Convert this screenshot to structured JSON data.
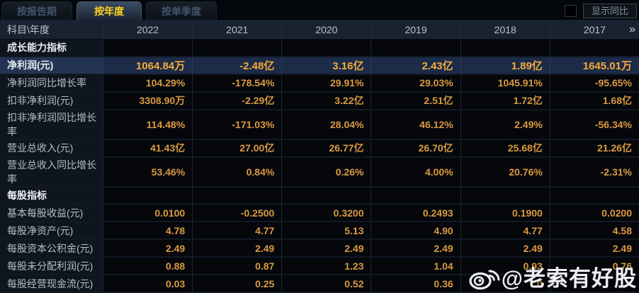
{
  "tabs": [
    {
      "label": "按报告期",
      "active": false
    },
    {
      "label": "按年度",
      "active": true
    },
    {
      "label": "按单季度",
      "active": false
    }
  ],
  "toolbar": {
    "show_yoy_label": "显示同比"
  },
  "table": {
    "corner_header": "科目\\年度",
    "year_headers": [
      "2022",
      "2021",
      "2020",
      "2019",
      "2018",
      "2017"
    ],
    "more_years_icon": "»",
    "rows": [
      {
        "type": "section",
        "label": "成长能力指标",
        "values": [
          "",
          "",
          "",
          "",
          "",
          ""
        ]
      },
      {
        "type": "data",
        "highlight": true,
        "label": "净利润(元)",
        "values": [
          "1064.84万",
          "-2.48亿",
          "3.16亿",
          "2.43亿",
          "1.89亿",
          "1645.01万"
        ]
      },
      {
        "type": "data",
        "highlight": false,
        "label": "净利润同比增长率",
        "values": [
          "104.29%",
          "-178.54%",
          "29.91%",
          "29.03%",
          "1045.91%",
          "-95.65%"
        ]
      },
      {
        "type": "data",
        "highlight": false,
        "label": "扣非净利润(元)",
        "values": [
          "3308.90万",
          "-2.29亿",
          "3.22亿",
          "2.51亿",
          "1.72亿",
          "1.68亿"
        ]
      },
      {
        "type": "data",
        "highlight": false,
        "label": "扣非净利润同比增长率",
        "values": [
          "114.48%",
          "-171.03%",
          "28.04%",
          "46.12%",
          "2.49%",
          "-56.34%"
        ]
      },
      {
        "type": "data",
        "highlight": false,
        "label": "营业总收入(元)",
        "values": [
          "41.43亿",
          "27.00亿",
          "26.77亿",
          "26.70亿",
          "25.68亿",
          "21.26亿"
        ]
      },
      {
        "type": "data",
        "highlight": false,
        "label": "营业总收入同比增长率",
        "values": [
          "53.46%",
          "0.84%",
          "0.26%",
          "4.00%",
          "20.76%",
          "-2.31%"
        ]
      },
      {
        "type": "section",
        "label": "每股指标",
        "values": [
          "",
          "",
          "",
          "",
          "",
          ""
        ]
      },
      {
        "type": "data",
        "highlight": false,
        "label": "基本每股收益(元)",
        "values": [
          "0.0100",
          "-0.2500",
          "0.3200",
          "0.2493",
          "0.1900",
          "0.0200"
        ]
      },
      {
        "type": "data",
        "highlight": false,
        "label": "每股净资产(元)",
        "values": [
          "4.78",
          "4.77",
          "5.13",
          "4.90",
          "4.77",
          "4.58"
        ]
      },
      {
        "type": "data",
        "highlight": false,
        "label": "每股资本公积金(元)",
        "values": [
          "2.49",
          "2.49",
          "2.49",
          "2.49",
          "2.49",
          "2.49"
        ]
      },
      {
        "type": "data",
        "highlight": false,
        "label": "每股未分配利润(元)",
        "values": [
          "0.88",
          "0.87",
          "1.23",
          "1.04",
          "0.93",
          "0.76"
        ]
      },
      {
        "type": "data",
        "highlight": false,
        "label": "每股经营现金流(元)",
        "values": [
          "0.03",
          "0.25",
          "0.52",
          "0.36",
          "0",
          ""
        ]
      }
    ]
  },
  "watermark": {
    "text": "@老索有好股",
    "icon": "weibo-icon"
  },
  "colors": {
    "accent_gold": "#ffd21e",
    "value_orange": "#db9a40",
    "highlight_value_orange": "#f5aa39",
    "highlight_row_bg": "#1b2b48",
    "header_bg": "#182230"
  }
}
